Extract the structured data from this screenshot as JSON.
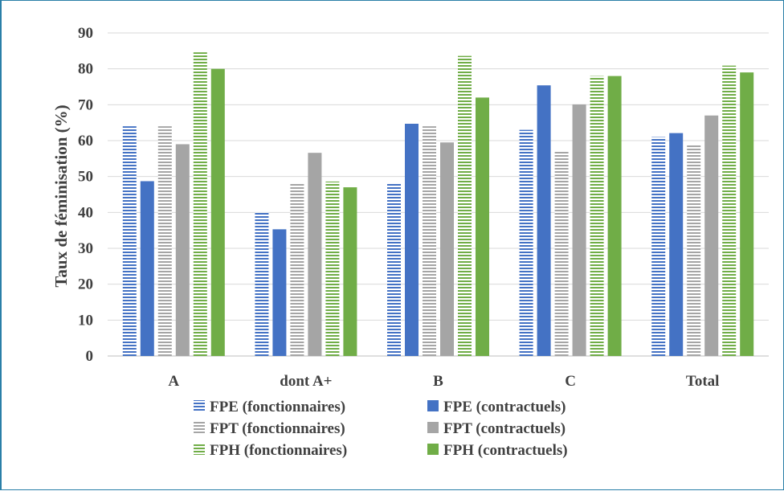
{
  "chart_data": {
    "type": "bar",
    "title": "",
    "xlabel": "",
    "ylabel": "Taux de féminisation (%)",
    "ylim": [
      0,
      90
    ],
    "yticks": [
      0,
      10,
      20,
      30,
      40,
      50,
      60,
      70,
      80,
      90
    ],
    "grid": true,
    "legend_position": "bottom",
    "categories": [
      "A",
      "dont A+",
      "B",
      "C",
      "Total"
    ],
    "series": [
      {
        "name": "FPE (fonctionnaires)",
        "color": "#4472c4",
        "pattern": "horizontal-stripes",
        "values": [
          64,
          40,
          48,
          63,
          61
        ]
      },
      {
        "name": "FPE (contractuels)",
        "color": "#4472c4",
        "pattern": "solid",
        "values": [
          48.7,
          35.3,
          64.7,
          75.4,
          62.1
        ]
      },
      {
        "name": "FPT (fonctionnaires)",
        "color": "#a5a5a5",
        "pattern": "horizontal-stripes",
        "values": [
          64,
          48,
          64,
          57,
          59
        ]
      },
      {
        "name": "FPT (contractuels)",
        "color": "#a5a5a5",
        "pattern": "solid",
        "values": [
          59,
          56.6,
          59.5,
          70.1,
          67
        ]
      },
      {
        "name": "FPH (fonctionnaires)",
        "color": "#70ad47",
        "pattern": "horizontal-stripes",
        "values": [
          84.6,
          48.6,
          83.6,
          78,
          80.9
        ]
      },
      {
        "name": "FPH (contractuels)",
        "color": "#70ad47",
        "pattern": "solid",
        "values": [
          80,
          47,
          72,
          78,
          79
        ]
      }
    ]
  }
}
